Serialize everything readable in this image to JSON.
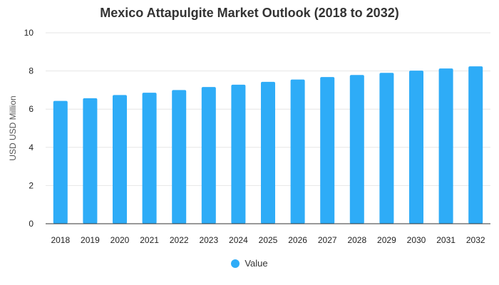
{
  "chart_data": {
    "type": "bar",
    "title": "Mexico Attapulgite Market Outlook (2018 to 2032)",
    "xlabel": "",
    "ylabel": "USD USD Million",
    "ylim": [
      0,
      10
    ],
    "yticks": [
      0,
      2,
      4,
      6,
      8,
      10
    ],
    "grid": true,
    "legend_position": "bottom",
    "categories": [
      "2018",
      "2019",
      "2020",
      "2021",
      "2022",
      "2023",
      "2024",
      "2025",
      "2026",
      "2027",
      "2028",
      "2029",
      "2030",
      "2031",
      "2032"
    ],
    "series": [
      {
        "name": "Value",
        "color": "#2eacf7",
        "values": [
          6.43,
          6.57,
          6.74,
          6.86,
          7.0,
          7.16,
          7.28,
          7.43,
          7.55,
          7.68,
          7.79,
          7.9,
          8.02,
          8.13,
          8.24
        ]
      }
    ]
  }
}
